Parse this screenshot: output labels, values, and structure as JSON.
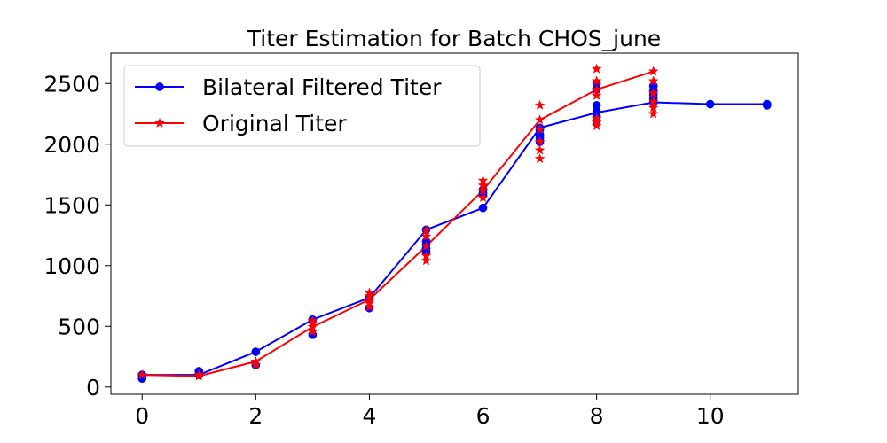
{
  "chart_data": {
    "type": "line",
    "title": "Titer Estimation for Batch CHOS_june",
    "xlabel": "",
    "ylabel": "",
    "xlim": [
      -0.55,
      11.55
    ],
    "ylim": [
      -60,
      2750
    ],
    "xticks": [
      0,
      2,
      4,
      6,
      8,
      10
    ],
    "xtick_labels": [
      "0",
      "2",
      "4",
      "6",
      "8",
      "10"
    ],
    "yticks": [
      0,
      500,
      1000,
      1500,
      2000,
      2500
    ],
    "ytick_labels": [
      "0",
      "500",
      "1000",
      "1500",
      "2000",
      "2500"
    ],
    "grid": false,
    "legend_position": "upper-left",
    "series": [
      {
        "name": "Bilateral Filtered Titer",
        "color": "#0000ff",
        "marker": "circle",
        "line_x": [
          0,
          1,
          2,
          3,
          4,
          5,
          6,
          7,
          8,
          9,
          10,
          11
        ],
        "line_y": [
          100,
          100,
          290,
          555,
          735,
          1295,
          1475,
          2135,
          2260,
          2345,
          2330,
          2330
        ],
        "points": [
          [
            0,
            100
          ],
          [
            0,
            70
          ],
          [
            1,
            100
          ],
          [
            1,
            130
          ],
          [
            2,
            290
          ],
          [
            2,
            180
          ],
          [
            3,
            430
          ],
          [
            3,
            555
          ],
          [
            4,
            650
          ],
          [
            4,
            735
          ],
          [
            5,
            1110
          ],
          [
            5,
            1140
          ],
          [
            5,
            1170
          ],
          [
            5,
            1200
          ],
          [
            5,
            1295
          ],
          [
            6,
            1475
          ],
          [
            6,
            1580
          ],
          [
            6,
            1600
          ],
          [
            6,
            1625
          ],
          [
            7,
            2020
          ],
          [
            7,
            2050
          ],
          [
            7,
            2080
          ],
          [
            7,
            2120
          ],
          [
            7,
            2135
          ],
          [
            8,
            2190
          ],
          [
            8,
            2230
          ],
          [
            8,
            2270
          ],
          [
            8,
            2320
          ],
          [
            8,
            2450
          ],
          [
            8,
            2500
          ],
          [
            9,
            2345
          ],
          [
            9,
            2380
          ],
          [
            9,
            2410
          ],
          [
            9,
            2445
          ],
          [
            9,
            2480
          ],
          [
            10,
            2330
          ],
          [
            11,
            2320
          ],
          [
            11,
            2330
          ]
        ]
      },
      {
        "name": "Original Titer",
        "color": "#ff0000",
        "marker": "star",
        "line_x": [
          0,
          1,
          2,
          3,
          4,
          5,
          6,
          7,
          8,
          9
        ],
        "line_y": [
          100,
          90,
          210,
          495,
          720,
          1160,
          1620,
          2200,
          2450,
          2600
        ],
        "points": [
          [
            0,
            100
          ],
          [
            1,
            90
          ],
          [
            1,
            100
          ],
          [
            2,
            180
          ],
          [
            2,
            210
          ],
          [
            3,
            455
          ],
          [
            3,
            495
          ],
          [
            3,
            520
          ],
          [
            3,
            545
          ],
          [
            4,
            660
          ],
          [
            4,
            690
          ],
          [
            4,
            720
          ],
          [
            4,
            750
          ],
          [
            4,
            775
          ],
          [
            5,
            1040
          ],
          [
            5,
            1080
          ],
          [
            5,
            1160
          ],
          [
            5,
            1240
          ],
          [
            5,
            1290
          ],
          [
            6,
            1560
          ],
          [
            6,
            1620
          ],
          [
            6,
            1660
          ],
          [
            6,
            1700
          ],
          [
            7,
            1880
          ],
          [
            7,
            1950
          ],
          [
            7,
            2020
          ],
          [
            7,
            2120
          ],
          [
            7,
            2200
          ],
          [
            7,
            2320
          ],
          [
            8,
            2150
          ],
          [
            8,
            2180
          ],
          [
            8,
            2210
          ],
          [
            8,
            2400
          ],
          [
            8,
            2450
          ],
          [
            8,
            2520
          ],
          [
            8,
            2620
          ],
          [
            9,
            2250
          ],
          [
            9,
            2300
          ],
          [
            9,
            2350
          ],
          [
            9,
            2420
          ],
          [
            9,
            2520
          ],
          [
            9,
            2600
          ]
        ]
      }
    ]
  }
}
